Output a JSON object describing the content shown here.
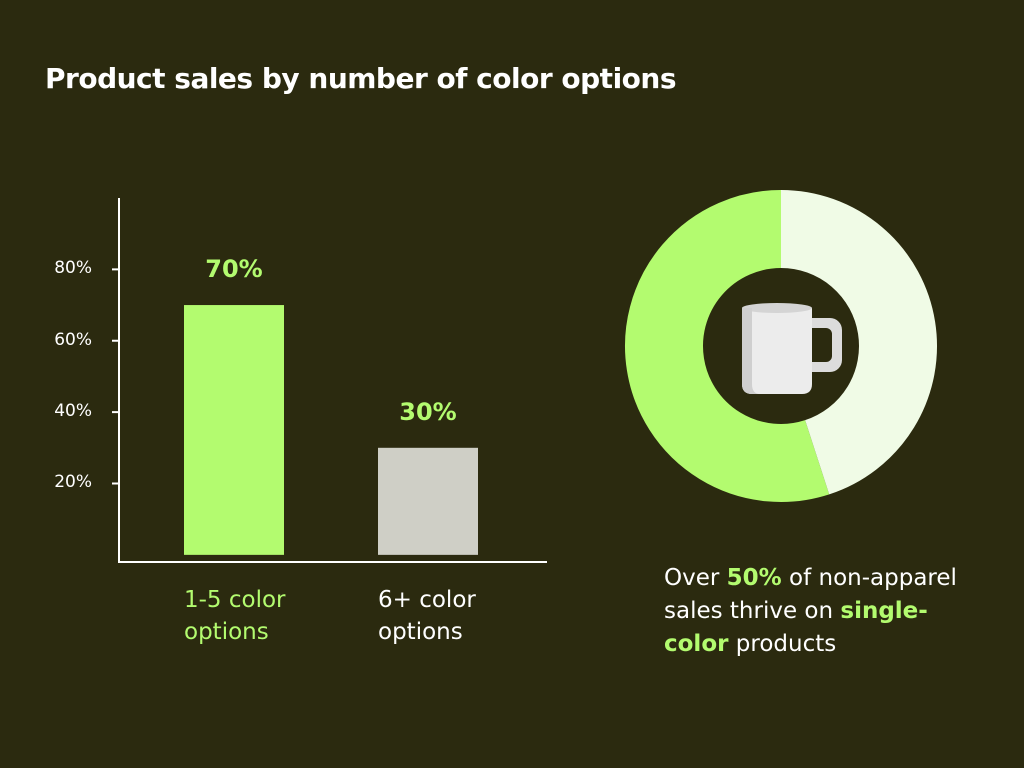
{
  "chart_data": [
    {
      "type": "bar",
      "title": "Product sales by number of color options",
      "categories": [
        "1-5 color options",
        "6+ color options"
      ],
      "values": [
        70,
        30
      ],
      "value_labels": [
        "70%",
        "30%"
      ],
      "colors": [
        "#b3fb6f",
        "#cfcfc6"
      ],
      "ylim": [
        -2,
        100
      ],
      "yticks": [
        {
          "value": 20,
          "label": "20%"
        },
        {
          "value": 40,
          "label": "40%"
        },
        {
          "value": 60,
          "label": "60%"
        },
        {
          "value": 80,
          "label": "80%"
        }
      ]
    },
    {
      "type": "pie",
      "values": [
        55,
        45
      ],
      "colors": [
        "#b3fb6f",
        "#f0fbe6"
      ],
      "caption": [
        "Over ",
        "50%",
        " of non-apparel sales thrive on ",
        "single-color",
        " products"
      ]
    }
  ]
}
